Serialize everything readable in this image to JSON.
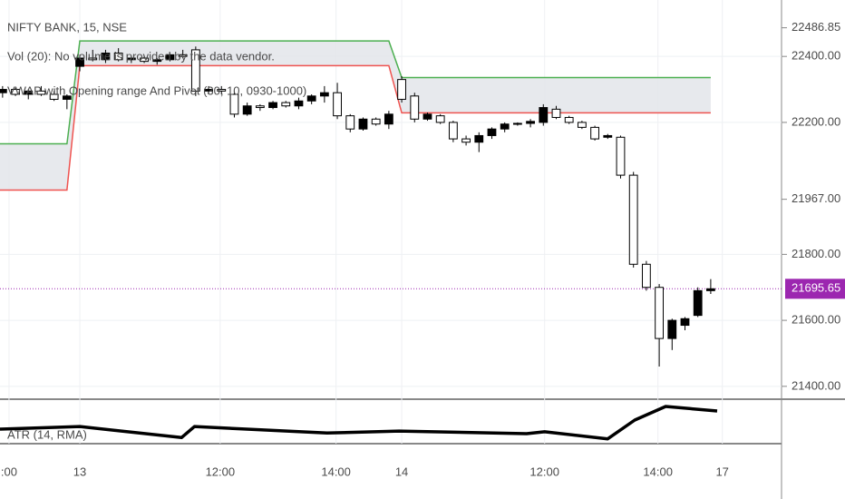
{
  "chart_data": [
    {
      "type": "candlestick",
      "title": "NIFTY BANK, 15, NSE",
      "annotations": [
        "Vol (20): No volume is provided by the data vendor.",
        "VWAP with Opening range And Pivot (30, 10, 0930-1000)"
      ],
      "x": [
        -6,
        -5,
        -4,
        -3,
        -2,
        -1,
        0,
        1,
        2,
        3,
        4,
        5,
        6,
        7,
        8,
        9,
        10,
        11,
        12,
        13,
        14,
        15,
        16,
        17,
        18,
        19,
        20,
        21,
        22,
        23,
        24,
        25,
        26,
        27,
        28,
        29,
        30,
        31,
        32,
        33,
        34,
        35,
        36,
        37,
        38,
        39,
        40,
        41,
        42,
        43,
        44,
        45,
        46,
        47,
        48,
        49
      ],
      "open": [
        22290,
        22300,
        22285,
        22295,
        22285,
        22270,
        22370,
        22395,
        22390,
        22410,
        22390,
        22395,
        22385,
        22390,
        22405,
        22420,
        22295,
        22300,
        22285,
        22225,
        22250,
        22245,
        22260,
        22250,
        22265,
        22280,
        22290,
        22220,
        22180,
        22210,
        22195,
        22330,
        22280,
        22210,
        22220,
        22200,
        22150,
        22140,
        22160,
        22180,
        22195,
        22197,
        22200,
        22240,
        22215,
        22200,
        22185,
        22155,
        22155,
        22040,
        21770,
        21700,
        21545,
        21585,
        21615,
        21690
      ],
      "high": [
        22310,
        22305,
        22300,
        22310,
        22295,
        22285,
        22405,
        22420,
        22420,
        22425,
        22400,
        22400,
        22395,
        22410,
        22420,
        22430,
        22310,
        22310,
        22295,
        22260,
        22255,
        22265,
        22265,
        22275,
        22285,
        22310,
        22320,
        22225,
        22215,
        22215,
        22235,
        22340,
        22290,
        22230,
        22225,
        22205,
        22160,
        22170,
        22185,
        22200,
        22200,
        22210,
        22255,
        22250,
        22220,
        22205,
        22190,
        22165,
        22160,
        22050,
        21780,
        21710,
        21605,
        21610,
        21700,
        21725
      ],
      "low": [
        22275,
        22280,
        22270,
        22280,
        22265,
        22240,
        22355,
        22385,
        22380,
        22385,
        22380,
        22380,
        22375,
        22385,
        22395,
        22280,
        22285,
        22285,
        22215,
        22220,
        22235,
        22240,
        22245,
        22240,
        22255,
        22260,
        22210,
        22170,
        22175,
        22190,
        22180,
        22260,
        22200,
        22205,
        22195,
        22140,
        22130,
        22110,
        22150,
        22170,
        22190,
        22185,
        22190,
        22210,
        22195,
        22180,
        22145,
        22150,
        22030,
        21760,
        21690,
        21460,
        21510,
        21570,
        21610,
        21680
      ],
      "close": [
        22300,
        22285,
        22295,
        22285,
        22270,
        22280,
        22395,
        22390,
        22410,
        22390,
        22395,
        22385,
        22390,
        22405,
        22400,
        22295,
        22300,
        22295,
        22225,
        22250,
        22245,
        22260,
        22250,
        22265,
        22280,
        22290,
        22220,
        22180,
        22210,
        22195,
        22225,
        22270,
        22210,
        22225,
        22200,
        22150,
        22140,
        22160,
        22180,
        22195,
        22197,
        22203,
        22245,
        22215,
        22200,
        22185,
        22150,
        22160,
        22040,
        21770,
        21700,
        21545,
        21600,
        21605,
        21690,
        21695.65
      ],
      "up_color": "#000000",
      "down_color": "#ffffff",
      "wick_color": "#000000",
      "series": [
        {
          "color": "#4caf50",
          "x": [
            -6.2,
            -1,
            0,
            24,
            25,
            49
          ],
          "values": [
            22135,
            22135,
            22447,
            22447,
            22336,
            22336
          ]
        },
        {
          "color": "#ef5350",
          "x": [
            -6.2,
            -1,
            0,
            24,
            25,
            49
          ],
          "values": [
            21995,
            21995,
            22372,
            22372,
            22229,
            22229
          ]
        }
      ],
      "band_fill": "#e3e5ea",
      "xlim": [
        -6.2,
        54.5
      ],
      "ylim": [
        21361,
        22571
      ],
      "xticks": [
        {
          "value": -5.5,
          "label": ":00"
        },
        {
          "value": 0,
          "label": "13"
        },
        {
          "value": 10.9,
          "label": "12:00"
        },
        {
          "value": 19.9,
          "label": "14:00"
        },
        {
          "value": 25,
          "label": "14"
        },
        {
          "value": 36.1,
          "label": "12:00"
        },
        {
          "value": 44.9,
          "label": "14:00"
        },
        {
          "value": 49.9,
          "label": "17"
        }
      ],
      "yticks": [
        {
          "value": 21400,
          "label": "21400.00"
        },
        {
          "value": 21600,
          "label": "21600.00"
        },
        {
          "value": 21800,
          "label": "21800.00"
        },
        {
          "value": 22200,
          "label": "22200.00"
        },
        {
          "value": 22400,
          "label": "22400.00"
        }
      ],
      "price_markers": [
        {
          "value": 22486.85,
          "label": "22486.85"
        },
        {
          "value": 21967,
          "label": "21967.00"
        },
        {
          "value": 21695.65,
          "label": "21695.65",
          "color": "#9c27b0"
        }
      ],
      "grid": true
    },
    {
      "type": "line",
      "title": "ATR (14, RMA)",
      "x": [
        -6.2,
        0,
        7.9,
        8.9,
        19.2,
        24.8,
        34.7,
        36.1,
        41,
        43.1,
        45.5,
        49.5
      ],
      "values": [
        40,
        44,
        27,
        44,
        34,
        37,
        33,
        36,
        25,
        54,
        75,
        68
      ],
      "ylim": [
        19,
        82
      ],
      "color": "#000000"
    }
  ]
}
